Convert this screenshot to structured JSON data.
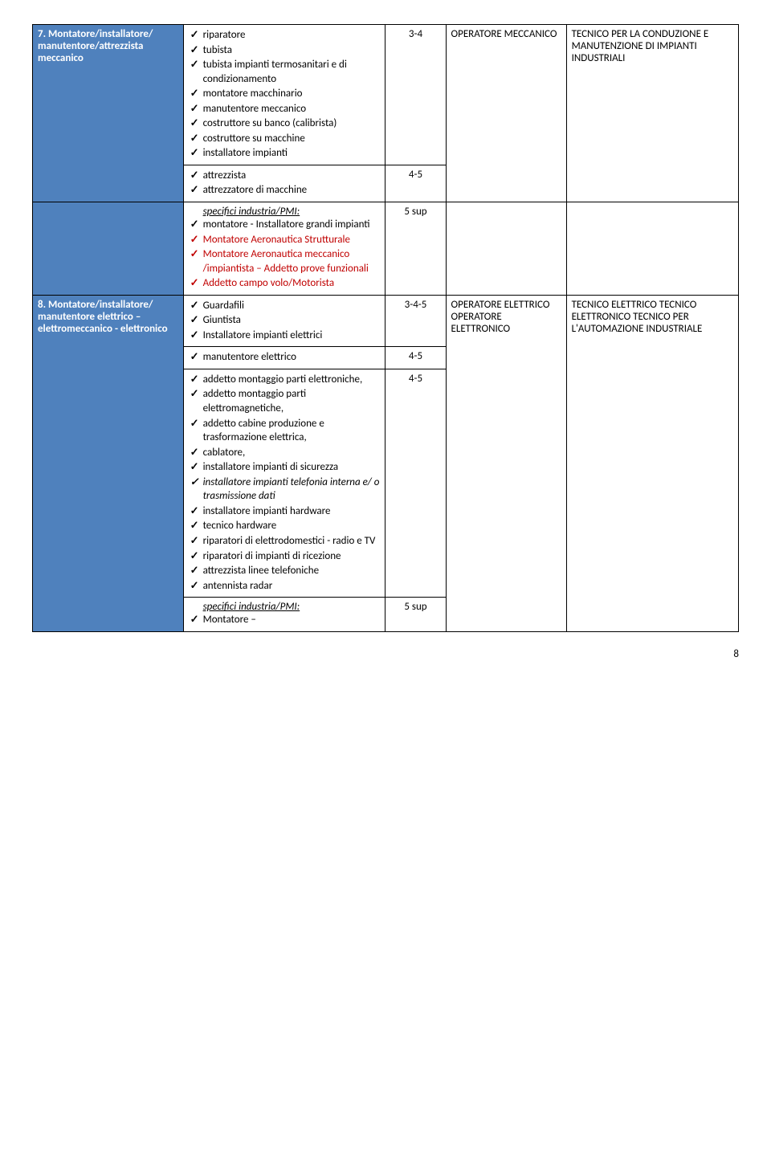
{
  "row7": {
    "label": "7. Montatore/installatore/ manutentore/attrezzista meccanico",
    "itemsA": [
      "riparatore",
      "tubista",
      "tubista impianti termosanitari e di condizionamento",
      "montatore macchinario",
      "manutentore meccanico",
      "costruttore su banco (calibrista)",
      "costruttore su macchine",
      "installatore impianti"
    ],
    "itemsB": [
      "attrezzista",
      "attrezzatore di macchine"
    ],
    "levelA": "3-4",
    "levelB": "4-5",
    "operator": "OPERATORE MECCANICO",
    "technician": "TECNICO PER LA CONDUZIONE E MANUTENZIONE DI IMPIANTI INDUSTRIALI"
  },
  "rowMid": {
    "specHeader": "specifici industria/PMI:",
    "items": [
      "montatore - Installatore grandi impianti",
      "Montatore Aeronautica Strutturale",
      "Montatore Aeronautica meccanico /impiantista – Addetto prove funzionali",
      "Addetto campo volo/Motorista"
    ],
    "redFlags": [
      false,
      true,
      true,
      true
    ],
    "level": "5 sup"
  },
  "row8": {
    "label": "8. Montatore/installatore/ manutentore elettrico – elettromeccanico - elettronico",
    "itemsA": [
      "Guardafili",
      "Giuntista",
      "Installatore impianti elettrici"
    ],
    "levelA": "3-4-5",
    "itemsB": [
      "manutentore elettrico"
    ],
    "levelB": "4-5",
    "itemsC": [
      "addetto montaggio parti elettroniche,",
      "addetto montaggio parti elettromagnetiche,",
      "addetto cabine produzione e trasformazione elettrica,",
      "cablatore,",
      "installatore impianti di sicurezza"
    ],
    "itemsC_italic": [
      "installatore impianti telefonia interna e/ o trasmissione dati"
    ],
    "itemsC_post": [
      "installatore impianti hardware",
      "tecnico hardware",
      "riparatori di elettrodomestici - radio e TV",
      "riparatori di impianti di ricezione",
      "attrezzista linee telefoniche",
      "antennista radar"
    ],
    "levelC": "4-5",
    "specHeader": "specifici industria/PMI:",
    "itemsD": [
      "Montatore –"
    ],
    "levelD": "5 sup",
    "operator": "OPERATORE ELETTRICO OPERATORE ELETTRONICO",
    "technician": "TECNICO ELETTRICO TECNICO ELETTRONICO TECNICO PER L'AUTOMAZIONE INDUSTRIALE"
  },
  "pageNumber": "8"
}
